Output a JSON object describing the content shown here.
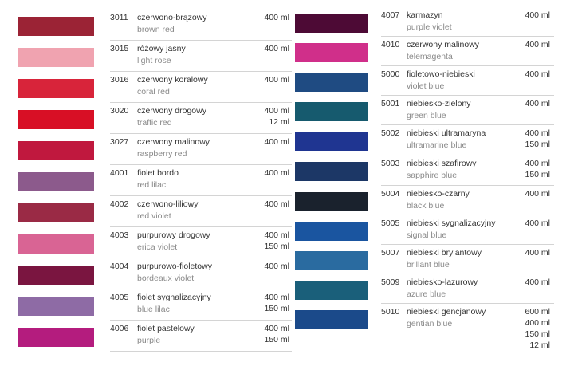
{
  "columns": [
    {
      "entries": [
        {
          "code": "3011",
          "name_pl": "czerwono-brązowy",
          "name_en": "brown red",
          "color": "#9b2335",
          "sizes": [
            "400 ml"
          ]
        },
        {
          "code": "3015",
          "name_pl": "różowy jasny",
          "name_en": "light rose",
          "color": "#f0a3b0",
          "sizes": [
            "400 ml"
          ]
        },
        {
          "code": "3016",
          "name_pl": "czerwony koralowy",
          "name_en": "coral red",
          "color": "#d8243a",
          "sizes": [
            "400 ml"
          ]
        },
        {
          "code": "3020",
          "name_pl": "czerwony drogowy",
          "name_en": "traffic red",
          "color": "#d80f25",
          "sizes": [
            "400 ml",
            "12 ml"
          ]
        },
        {
          "code": "3027",
          "name_pl": "czerwony malinowy",
          "name_en": "raspberry red",
          "color": "#c0183e",
          "sizes": [
            "400 ml"
          ]
        },
        {
          "code": "4001",
          "name_pl": "fiolet bordo",
          "name_en": "red lilac",
          "color": "#8c5a8c",
          "sizes": [
            "400 ml"
          ]
        },
        {
          "code": "4002",
          "name_pl": "czerwono-liliowy",
          "name_en": "red violet",
          "color": "#9a2a45",
          "sizes": [
            "400 ml"
          ]
        },
        {
          "code": "4003",
          "name_pl": "purpurowy drogowy",
          "name_en": "erica violet",
          "color": "#d96494",
          "sizes": [
            "400 ml",
            "150 ml"
          ]
        },
        {
          "code": "4004",
          "name_pl": "purpurowo-fioletowy",
          "name_en": "bordeaux violet",
          "color": "#7a1540",
          "sizes": [
            "400 ml"
          ]
        },
        {
          "code": "4005",
          "name_pl": "fiolet sygnalizacyjny",
          "name_en": "blue lilac",
          "color": "#8e6ba5",
          "sizes": [
            "400 ml",
            "150 ml"
          ]
        },
        {
          "code": "4006",
          "name_pl": "fiolet pastelowy",
          "name_en": "purple",
          "color": "#b41c7e",
          "sizes": [
            "400 ml",
            "150 ml"
          ]
        }
      ]
    },
    {
      "entries": [
        {
          "code": "4007",
          "name_pl": "karmazyn",
          "name_en": "purple violet",
          "color": "#4d0a35",
          "sizes": [
            "400 ml"
          ]
        },
        {
          "code": "4010",
          "name_pl": "czerwony malinowy",
          "name_en": "telemagenta",
          "color": "#d02f8a",
          "sizes": [
            "400 ml"
          ]
        },
        {
          "code": "5000",
          "name_pl": "fioletowo-niebieski",
          "name_en": "violet blue",
          "color": "#1f4b82",
          "sizes": [
            "400 ml"
          ]
        },
        {
          "code": "5001",
          "name_pl": "niebiesko-zielony",
          "name_en": "green blue",
          "color": "#165a6e",
          "sizes": [
            "400 ml"
          ]
        },
        {
          "code": "5002",
          "name_pl": "niebieski ultramaryna",
          "name_en": "ultramarine blue",
          "color": "#1f3591",
          "sizes": [
            "400 ml",
            "150 ml"
          ]
        },
        {
          "code": "5003",
          "name_pl": "niebieski szafirowy",
          "name_en": "sapphire blue",
          "color": "#1c3766",
          "sizes": [
            "400 ml",
            "150 ml"
          ]
        },
        {
          "code": "5004",
          "name_pl": "niebiesko-czarny",
          "name_en": "black blue",
          "color": "#1a222d",
          "sizes": [
            "400 ml"
          ]
        },
        {
          "code": "5005",
          "name_pl": "niebieski sygnalizacyjny",
          "name_en": "signal blue",
          "color": "#1a55a0",
          "sizes": [
            "400 ml"
          ]
        },
        {
          "code": "5007",
          "name_pl": "niebieski brylantowy",
          "name_en": "brillant blue",
          "color": "#2a6ba0",
          "sizes": [
            "400 ml"
          ]
        },
        {
          "code": "5009",
          "name_pl": "niebiesko-lazurowy",
          "name_en": "azure blue",
          "color": "#1a5f7a",
          "sizes": [
            "400 ml"
          ]
        },
        {
          "code": "5010",
          "name_pl": "niebieski gencjanowy",
          "name_en": "gentian blue",
          "color": "#1b4a8a",
          "sizes": [
            "600 ml",
            "400 ml",
            "150 ml",
            "12 ml"
          ]
        }
      ]
    }
  ]
}
